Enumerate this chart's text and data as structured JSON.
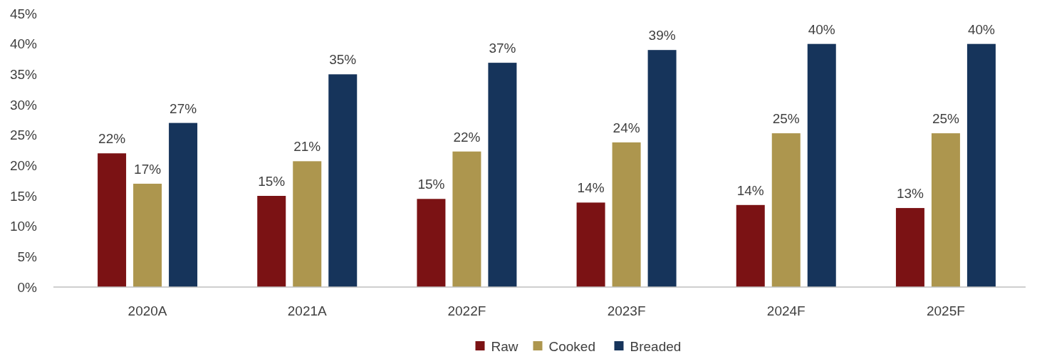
{
  "chart_data": {
    "type": "bar",
    "categories": [
      "2020A",
      "2021A",
      "2022F",
      "2023F",
      "2024F",
      "2025F"
    ],
    "series": [
      {
        "name": "Raw",
        "color": "#7b1214",
        "values": [
          22.0,
          15.0,
          14.5,
          13.9,
          13.5,
          13.0
        ],
        "value_labels": [
          "22%",
          "15%",
          "15%",
          "14%",
          "14%",
          "13%"
        ]
      },
      {
        "name": "Cooked",
        "color": "#ad964e",
        "values": [
          17.0,
          20.7,
          22.3,
          23.8,
          25.3,
          25.3
        ],
        "value_labels": [
          "17%",
          "21%",
          "22%",
          "24%",
          "25%",
          "25%"
        ]
      },
      {
        "name": "Breaded",
        "color": "#16345b",
        "values": [
          27.0,
          35.0,
          36.9,
          39.0,
          40.0,
          40.0
        ],
        "value_labels": [
          "27%",
          "35%",
          "37%",
          "39%",
          "40%",
          "40%"
        ]
      }
    ],
    "ylim": [
      0,
      45
    ],
    "yticks": [
      {
        "value": 0,
        "label": "0%"
      },
      {
        "value": 5,
        "label": "5%"
      },
      {
        "value": 10,
        "label": "10%"
      },
      {
        "value": 15,
        "label": "15%"
      },
      {
        "value": 20,
        "label": "20%"
      },
      {
        "value": 25,
        "label": "25%"
      },
      {
        "value": 30,
        "label": "30%"
      },
      {
        "value": 35,
        "label": "35%"
      },
      {
        "value": 40,
        "label": "40%"
      },
      {
        "value": 45,
        "label": "45%"
      }
    ],
    "grid": false,
    "legend": "bottom"
  }
}
